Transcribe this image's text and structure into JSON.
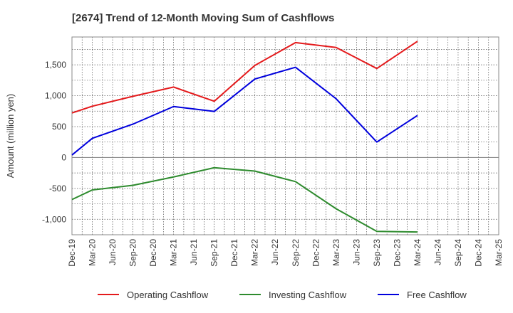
{
  "chart_data": {
    "type": "line",
    "title": "[2674]  Trend of 12-Month Moving Sum of Cashflows",
    "xlabel": "",
    "ylabel": "Amount (million yen)",
    "ylim": [
      -1250,
      1950
    ],
    "yticks": [
      -1000,
      -500,
      0,
      500,
      1000,
      1500
    ],
    "ytick_labels": [
      "-1,000",
      "-500",
      "0",
      "500",
      "1,000",
      "1,500"
    ],
    "x": [
      "Dec-19",
      "Mar-20",
      "Jun-20",
      "Sep-20",
      "Dec-20",
      "Mar-21",
      "Jun-21",
      "Sep-21",
      "Dec-21",
      "Mar-22",
      "Jun-22",
      "Sep-22",
      "Dec-22",
      "Mar-23",
      "Jun-23",
      "Sep-23",
      "Dec-23",
      "Mar-24",
      "Jun-24",
      "Sep-24",
      "Dec-24",
      "Mar-25"
    ],
    "grid": true,
    "legend_position": "bottom",
    "series": [
      {
        "name": "Operating Cashflow",
        "color": "#e41a1c",
        "points": [
          [
            "Dec-19",
            720
          ],
          [
            "Mar-20",
            830
          ],
          [
            "Sep-20",
            990
          ],
          [
            "Mar-21",
            1140
          ],
          [
            "Sep-21",
            910
          ],
          [
            "Mar-22",
            1490
          ],
          [
            "Sep-22",
            1860
          ],
          [
            "Mar-23",
            1780
          ],
          [
            "Sep-23",
            1440
          ],
          [
            "Mar-24",
            1880
          ]
        ]
      },
      {
        "name": "Investing Cashflow",
        "color": "#2e8b2e",
        "points": [
          [
            "Dec-19",
            -680
          ],
          [
            "Mar-20",
            -525
          ],
          [
            "Sep-20",
            -450
          ],
          [
            "Mar-21",
            -315
          ],
          [
            "Sep-21",
            -165
          ],
          [
            "Mar-22",
            -220
          ],
          [
            "Sep-22",
            -390
          ],
          [
            "Mar-23",
            -830
          ],
          [
            "Sep-23",
            -1195
          ],
          [
            "Mar-24",
            -1205
          ]
        ]
      },
      {
        "name": "Free Cashflow",
        "color": "#0000dd",
        "points": [
          [
            "Dec-19",
            40
          ],
          [
            "Mar-20",
            310
          ],
          [
            "Sep-20",
            540
          ],
          [
            "Mar-21",
            825
          ],
          [
            "Sep-21",
            745
          ],
          [
            "Mar-22",
            1270
          ],
          [
            "Sep-22",
            1460
          ],
          [
            "Mar-23",
            950
          ],
          [
            "Sep-23",
            250
          ],
          [
            "Mar-24",
            680
          ]
        ]
      }
    ]
  }
}
